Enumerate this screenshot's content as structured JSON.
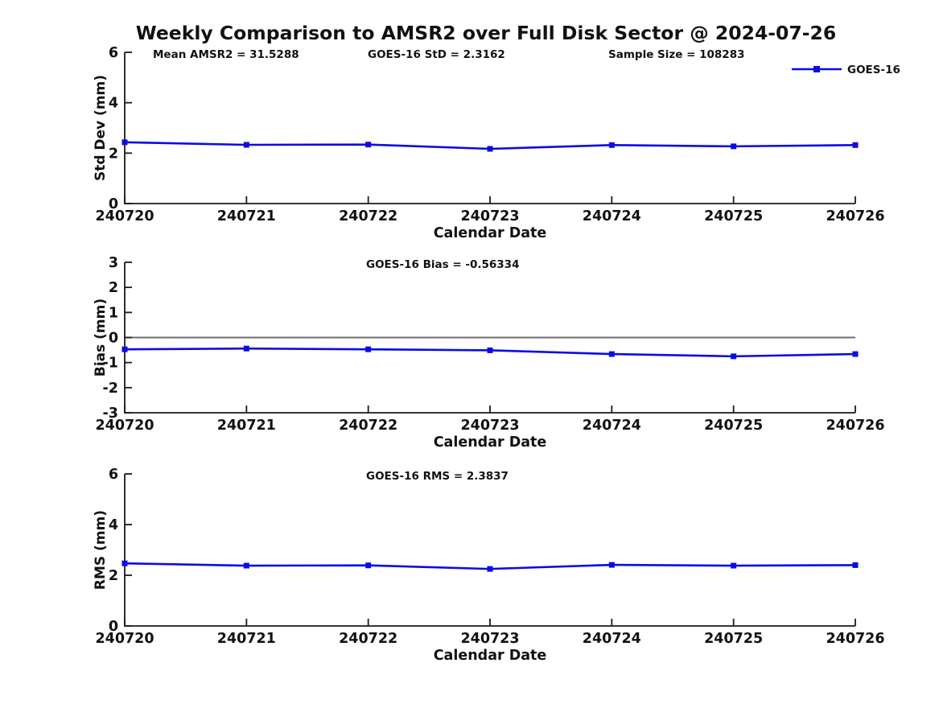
{
  "title": "Weekly Comparison to AMSR2 over Full Disk Sector @ 2024-07-26",
  "colors": {
    "series": "#0b0be6",
    "axis": "#1a1a1a",
    "zero_line": "#6e6e6e",
    "text": "#111111"
  },
  "chart_data": [
    {
      "type": "line",
      "ylabel": "Std Dev (mm)",
      "xlabel": "Calendar Date",
      "ylim": [
        0,
        6
      ],
      "yticks": [
        "0",
        "2",
        "4",
        "6"
      ],
      "categories": [
        "240720",
        "240721",
        "240722",
        "240723",
        "240724",
        "240725",
        "240726"
      ],
      "series": [
        {
          "name": "GOES-16",
          "values": [
            2.43,
            2.33,
            2.34,
            2.17,
            2.32,
            2.27,
            2.32
          ]
        }
      ],
      "annotations": [
        {
          "text": "Mean AMSR2 = 31.5288",
          "x": 190
        },
        {
          "text": "GOES-16 StD = 2.3162",
          "x": 457
        },
        {
          "text": "Sample Size = 108283",
          "x": 756
        }
      ],
      "legend": {
        "label": "GOES-16"
      },
      "zero_line": false,
      "grid": false,
      "legend_position": "top-right-outside"
    },
    {
      "type": "line",
      "ylabel": "Bias (mm)",
      "xlabel": "Calendar Date",
      "ylim": [
        -3,
        3
      ],
      "yticks": [
        "-3",
        "-2",
        "-1",
        "0",
        "1",
        "2",
        "3"
      ],
      "categories": [
        "240720",
        "240721",
        "240722",
        "240723",
        "240724",
        "240725",
        "240726"
      ],
      "series": [
        {
          "name": "GOES-16",
          "values": [
            -0.47,
            -0.44,
            -0.47,
            -0.51,
            -0.66,
            -0.75,
            -0.66
          ]
        }
      ],
      "annotations": [
        {
          "text": "GOES-16 Bias  = -0.56334",
          "x": 455
        }
      ],
      "legend": null,
      "zero_line": true,
      "grid": false
    },
    {
      "type": "line",
      "ylabel": "RMS (mm)",
      "xlabel": "Calendar Date",
      "ylim": [
        0,
        6
      ],
      "yticks": [
        "0",
        "2",
        "4",
        "6"
      ],
      "categories": [
        "240720",
        "240721",
        "240722",
        "240723",
        "240724",
        "240725",
        "240726"
      ],
      "series": [
        {
          "name": "GOES-16",
          "values": [
            2.47,
            2.38,
            2.39,
            2.25,
            2.41,
            2.38,
            2.4
          ]
        }
      ],
      "annotations": [
        {
          "text": "GOES-16 RMS = 2.3837",
          "x": 455
        }
      ],
      "legend": null,
      "zero_line": false,
      "grid": false
    }
  ]
}
